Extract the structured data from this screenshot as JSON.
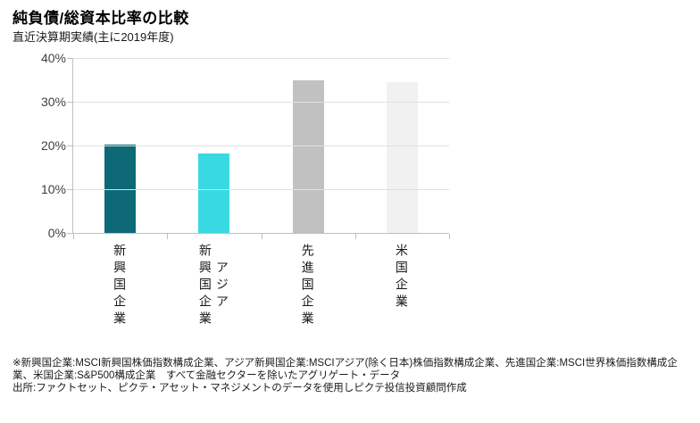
{
  "chart_data": {
    "type": "bar",
    "title": "純負債/総資本比率の比較",
    "subtitle": "直近決算期実績(主に2019年度)",
    "categories": [
      "新興国企業",
      "アジア新興国企業",
      "先進国企業",
      "米国企業"
    ],
    "categories_display": [
      "新興国企業",
      "アジア\n新興国企業",
      "先進国企業",
      "米国企業"
    ],
    "values": [
      20.3,
      18.2,
      35.0,
      34.4
    ],
    "unit": "%",
    "bar_colors": [
      "#0e6976",
      "#38d9e3",
      "#c1c1c1",
      "#f1f1f1"
    ],
    "ylim": [
      0,
      40
    ],
    "ytick_step": 10,
    "ytick_labels": [
      "0%",
      "10%",
      "20%",
      "30%",
      "40%"
    ],
    "grid": true,
    "legend": false,
    "xlabel": "",
    "ylabel": ""
  },
  "footnote": {
    "lines": [
      "※新興国企業:MSCI新興国株価指数構成企業、アジア新興国企業:MSCIアジア(除く日本)株価指数構成企業、先進国企業:MSCI世界株価指数構成企",
      "業、米国企業:S&P500構成企業　すべて金融セクターを除いたアグリゲート・データ",
      "出所:ファクトセット、ピクテ・アセット・マネジメントのデータを使用しピクテ投信投資顧問作成"
    ]
  },
  "colors": {
    "axis": "#bfbfbf",
    "gridline": "#e0e0e0",
    "tick_text": "#3c3f46",
    "title_text": "#000000"
  }
}
